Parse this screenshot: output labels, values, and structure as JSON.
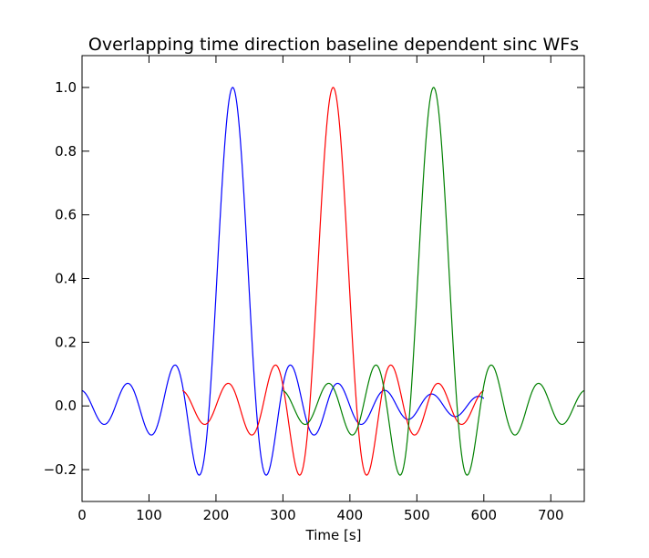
{
  "chart_data": {
    "type": "line",
    "title": "Overlapping time direction baseline dependent sinc WFs",
    "xlabel": "Time [s]",
    "ylabel": "",
    "xlim": [
      0,
      750
    ],
    "ylim": [
      -0.3,
      1.1
    ],
    "x_ticks": [
      0,
      100,
      200,
      300,
      400,
      500,
      600,
      700
    ],
    "y_ticks": [
      -0.2,
      0.0,
      0.2,
      0.4,
      0.6,
      0.8,
      1.0
    ],
    "x_tick_labels": [
      "0",
      "100",
      "200",
      "300",
      "400",
      "500",
      "600",
      "700"
    ],
    "y_tick_labels": [
      "−0.2",
      "0.0",
      "0.2",
      "0.4",
      "0.6",
      "0.8",
      "1.0"
    ],
    "grid": false,
    "legend": false,
    "x_range": [
      0,
      600
    ],
    "sample_step": 1,
    "series": [
      {
        "color": "#0000ff",
        "center": 225,
        "period": 50,
        "x_start": 0,
        "x_end": 600
      },
      {
        "color": "#ff0000",
        "center": 375,
        "period": 50,
        "x_start": 150,
        "x_end": 600
      },
      {
        "color": "#008000",
        "center": 525,
        "period": 50,
        "x_start": 300,
        "x_end": 750
      }
    ]
  }
}
